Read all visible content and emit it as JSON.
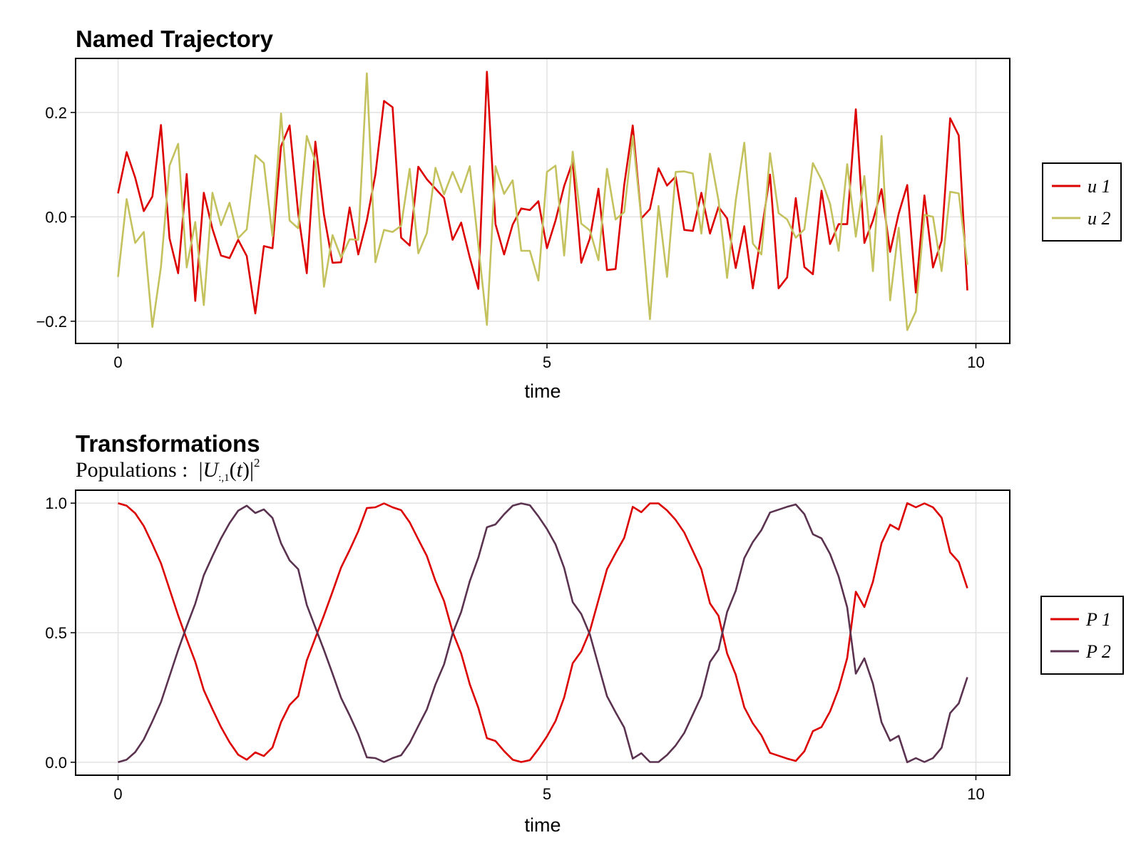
{
  "chart_data": [
    {
      "type": "line",
      "title": "Named Trajectory",
      "xlabel": "time",
      "ylabel": "",
      "xlim": [
        -0.495,
        10.395
      ],
      "ylim": [
        -0.2425,
        0.3035
      ],
      "xticks": [
        0,
        5,
        10
      ],
      "xtick_labels": [
        "0",
        "5",
        "10"
      ],
      "yticks": [
        -0.2,
        0.0,
        0.2
      ],
      "ytick_labels": [
        "−0.2",
        "0.0",
        "0.2"
      ],
      "grid": true,
      "legend_placement": "right",
      "x": [
        0,
        0.1,
        0.2,
        0.3,
        0.4,
        0.5,
        0.6,
        0.7,
        0.8,
        0.9,
        1.0,
        1.1,
        1.2,
        1.3,
        1.4,
        1.5,
        1.6,
        1.7,
        1.8,
        1.9,
        2.0,
        2.1,
        2.2,
        2.3,
        2.4,
        2.5,
        2.6,
        2.7,
        2.8,
        2.9,
        3.0,
        3.1,
        3.2,
        3.3,
        3.4,
        3.5,
        3.6,
        3.7,
        3.8,
        3.9,
        4.0,
        4.1,
        4.2,
        4.3,
        4.4,
        4.5,
        4.6,
        4.7,
        4.8,
        4.9,
        5.0,
        5.1,
        5.2,
        5.3,
        5.4,
        5.5,
        5.6,
        5.7,
        5.8,
        5.9,
        6.0,
        6.1,
        6.2,
        6.3,
        6.4,
        6.5,
        6.6,
        6.7,
        6.8,
        6.9,
        7.0,
        7.1,
        7.2,
        7.3,
        7.4,
        7.5,
        7.6,
        7.7,
        7.8,
        7.9,
        8.0,
        8.1,
        8.2,
        8.3,
        8.4,
        8.5,
        8.6,
        8.7,
        8.8,
        8.9,
        9.0,
        9.1,
        9.2,
        9.3,
        9.4,
        9.5,
        9.6,
        9.7,
        9.8,
        9.9
      ],
      "series": [
        {
          "name": "u 1",
          "color": "#dc0000",
          "values": [
            0.045,
            0.124,
            0.075,
            0.011,
            0.039,
            0.176,
            -0.041,
            -0.108,
            0.082,
            -0.161,
            0.046,
            -0.023,
            -0.074,
            -0.079,
            -0.044,
            -0.075,
            -0.185,
            -0.056,
            -0.06,
            0.135,
            0.175,
            0.006,
            -0.108,
            0.144,
            0.004,
            -0.088,
            -0.087,
            0.018,
            -0.072,
            -0.007,
            0.081,
            0.222,
            0.21,
            -0.04,
            -0.055,
            0.096,
            0.072,
            0.054,
            0.036,
            -0.044,
            -0.011,
            -0.078,
            -0.138,
            0.278,
            -0.014,
            -0.072,
            -0.015,
            0.016,
            0.013,
            0.03,
            -0.06,
            -0.007,
            0.059,
            0.106,
            -0.088,
            -0.041,
            0.054,
            -0.102,
            -0.1,
            0.061,
            0.175,
            -0.003,
            0.015,
            0.093,
            0.06,
            0.077,
            -0.025,
            -0.027,
            0.046,
            -0.032,
            0.019,
            -0.003,
            -0.098,
            -0.018,
            -0.137,
            -0.03,
            0.081,
            -0.137,
            -0.116,
            0.036,
            -0.096,
            -0.11,
            0.05,
            -0.052,
            -0.014,
            -0.014,
            0.206,
            -0.05,
            -0.007,
            0.053,
            -0.067,
            0.006,
            0.061,
            -0.145,
            0.041,
            -0.097,
            -0.046,
            0.189,
            0.156,
            -0.141
          ]
        },
        {
          "name": "u 2",
          "color": "#c4c25e",
          "values": [
            -0.115,
            0.034,
            -0.05,
            -0.029,
            -0.211,
            -0.096,
            0.098,
            0.14,
            -0.097,
            -0.01,
            -0.169,
            0.046,
            -0.016,
            0.027,
            -0.041,
            -0.024,
            0.118,
            0.103,
            -0.037,
            0.198,
            -0.007,
            -0.022,
            0.155,
            0.106,
            -0.134,
            -0.035,
            -0.078,
            -0.043,
            -0.044,
            0.275,
            -0.087,
            -0.025,
            -0.029,
            -0.017,
            0.092,
            -0.07,
            -0.031,
            0.094,
            0.043,
            0.086,
            0.047,
            0.097,
            -0.055,
            -0.207,
            0.097,
            0.044,
            0.07,
            -0.065,
            -0.065,
            -0.122,
            0.086,
            0.098,
            -0.074,
            0.125,
            -0.013,
            -0.026,
            -0.083,
            0.092,
            -0.005,
            0.009,
            0.155,
            -0.003,
            -0.196,
            0.021,
            -0.115,
            0.086,
            0.087,
            0.083,
            -0.032,
            0.121,
            0.031,
            -0.117,
            0.031,
            0.142,
            -0.051,
            -0.072,
            0.122,
            0.007,
            -0.005,
            -0.04,
            -0.024,
            0.103,
            0.071,
            0.025,
            -0.065,
            0.101,
            -0.038,
            0.078,
            -0.104,
            0.155,
            -0.16,
            -0.021,
            -0.217,
            -0.181,
            0.004,
            0.0,
            -0.104,
            0.048,
            0.045,
            -0.092
          ]
        }
      ]
    },
    {
      "type": "line",
      "title": "Transformations",
      "subtitle": {
        "prefix": "Populations :",
        "symbol": "U",
        "subscript": ":,1",
        "argument_open": "(",
        "argument": "t",
        "argument_close": ")",
        "superscript": "2"
      },
      "xlabel": "time",
      "ylabel": "",
      "xlim": [
        -0.495,
        10.395
      ],
      "ylim": [
        -0.05,
        1.05
      ],
      "xticks": [
        0,
        5,
        10
      ],
      "xtick_labels": [
        "0",
        "5",
        "10"
      ],
      "yticks": [
        0.0,
        0.5,
        1.0
      ],
      "ytick_labels": [
        "0.0",
        "0.5",
        "1.0"
      ],
      "grid": true,
      "legend_placement": "right",
      "x": [
        0,
        0.1,
        0.2,
        0.3,
        0.4,
        0.5,
        0.6,
        0.7,
        0.8,
        0.9,
        1.0,
        1.1,
        1.2,
        1.3,
        1.4,
        1.5,
        1.6,
        1.7,
        1.8,
        1.9,
        2.0,
        2.1,
        2.2,
        2.3,
        2.4,
        2.5,
        2.6,
        2.7,
        2.8,
        2.9,
        3.0,
        3.1,
        3.2,
        3.3,
        3.4,
        3.5,
        3.6,
        3.7,
        3.8,
        3.9,
        4.0,
        4.1,
        4.2,
        4.3,
        4.4,
        4.5,
        4.6,
        4.7,
        4.8,
        4.9,
        5.0,
        5.1,
        5.2,
        5.3,
        5.4,
        5.5,
        5.6,
        5.7,
        5.8,
        5.9,
        6.0,
        6.1,
        6.2,
        6.3,
        6.4,
        6.5,
        6.6,
        6.7,
        6.8,
        6.9,
        7.0,
        7.1,
        7.2,
        7.3,
        7.4,
        7.5,
        7.6,
        7.7,
        7.8,
        7.9,
        8.0,
        8.1,
        8.2,
        8.3,
        8.4,
        8.5,
        8.6,
        8.7,
        8.8,
        8.9,
        9.0,
        9.1,
        9.2,
        9.3,
        9.4,
        9.5,
        9.6,
        9.7,
        9.8,
        9.9
      ],
      "series": [
        {
          "name": "P 1",
          "color": "#dc0000",
          "values": [
            1.0,
            0.99,
            0.961,
            0.912,
            0.842,
            0.768,
            0.668,
            0.567,
            0.475,
            0.388,
            0.278,
            0.205,
            0.136,
            0.077,
            0.029,
            0.01,
            0.038,
            0.024,
            0.057,
            0.155,
            0.221,
            0.255,
            0.393,
            0.48,
            0.567,
            0.658,
            0.752,
            0.819,
            0.892,
            0.981,
            0.984,
            0.999,
            0.984,
            0.973,
            0.926,
            0.86,
            0.796,
            0.7,
            0.622,
            0.503,
            0.42,
            0.301,
            0.21,
            0.093,
            0.082,
            0.043,
            0.01,
            0.001,
            0.008,
            0.051,
            0.1,
            0.159,
            0.25,
            0.382,
            0.428,
            0.507,
            0.626,
            0.745,
            0.807,
            0.866,
            0.986,
            0.965,
            0.999,
            0.999,
            0.972,
            0.935,
            0.887,
            0.816,
            0.745,
            0.613,
            0.565,
            0.42,
            0.338,
            0.212,
            0.15,
            0.104,
            0.036,
            0.025,
            0.014,
            0.005,
            0.042,
            0.12,
            0.136,
            0.196,
            0.283,
            0.402,
            0.658,
            0.599,
            0.697,
            0.846,
            0.917,
            0.898,
            1.0,
            0.984,
            0.999,
            0.984,
            0.944,
            0.81,
            0.773,
            0.672
          ]
        },
        {
          "name": "P 2",
          "color": "#5b3350",
          "values": [
            0.0,
            0.01,
            0.039,
            0.088,
            0.158,
            0.232,
            0.332,
            0.433,
            0.525,
            0.612,
            0.722,
            0.795,
            0.864,
            0.923,
            0.971,
            0.99,
            0.962,
            0.976,
            0.943,
            0.845,
            0.779,
            0.745,
            0.607,
            0.52,
            0.433,
            0.342,
            0.248,
            0.181,
            0.108,
            0.019,
            0.016,
            0.001,
            0.016,
            0.027,
            0.074,
            0.14,
            0.204,
            0.3,
            0.378,
            0.497,
            0.58,
            0.699,
            0.79,
            0.907,
            0.918,
            0.957,
            0.99,
            0.999,
            0.992,
            0.949,
            0.9,
            0.841,
            0.75,
            0.618,
            0.572,
            0.493,
            0.374,
            0.255,
            0.193,
            0.134,
            0.014,
            0.035,
            0.001,
            0.001,
            0.028,
            0.065,
            0.113,
            0.184,
            0.255,
            0.387,
            0.435,
            0.58,
            0.662,
            0.788,
            0.85,
            0.896,
            0.964,
            0.975,
            0.986,
            0.995,
            0.958,
            0.88,
            0.864,
            0.804,
            0.717,
            0.598,
            0.342,
            0.401,
            0.303,
            0.154,
            0.083,
            0.102,
            0.0,
            0.016,
            0.001,
            0.016,
            0.056,
            0.19,
            0.227,
            0.328
          ]
        }
      ]
    }
  ]
}
